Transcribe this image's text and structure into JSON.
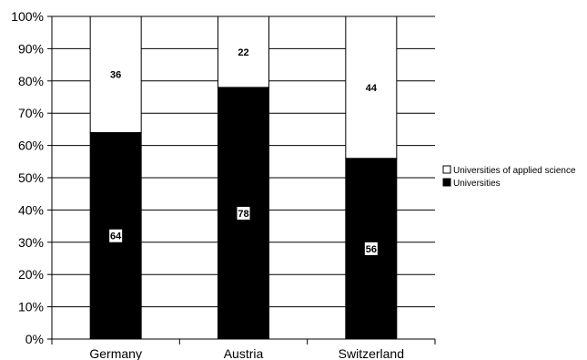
{
  "chart_data": {
    "type": "bar",
    "stacked": true,
    "percent": true,
    "categories": [
      "Germany",
      "Austria",
      "Switzerland"
    ],
    "series": [
      {
        "name": "Universities",
        "values": [
          64,
          78,
          56
        ],
        "color": "#000000"
      },
      {
        "name": "Universities of applied science",
        "values": [
          36,
          22,
          44
        ],
        "color": "#ffffff"
      }
    ],
    "yticks": [
      "0%",
      "10%",
      "20%",
      "30%",
      "40%",
      "50%",
      "60%",
      "70%",
      "80%",
      "90%",
      "100%"
    ],
    "ylim": [
      0,
      100
    ],
    "grid": true,
    "legend": "right"
  }
}
